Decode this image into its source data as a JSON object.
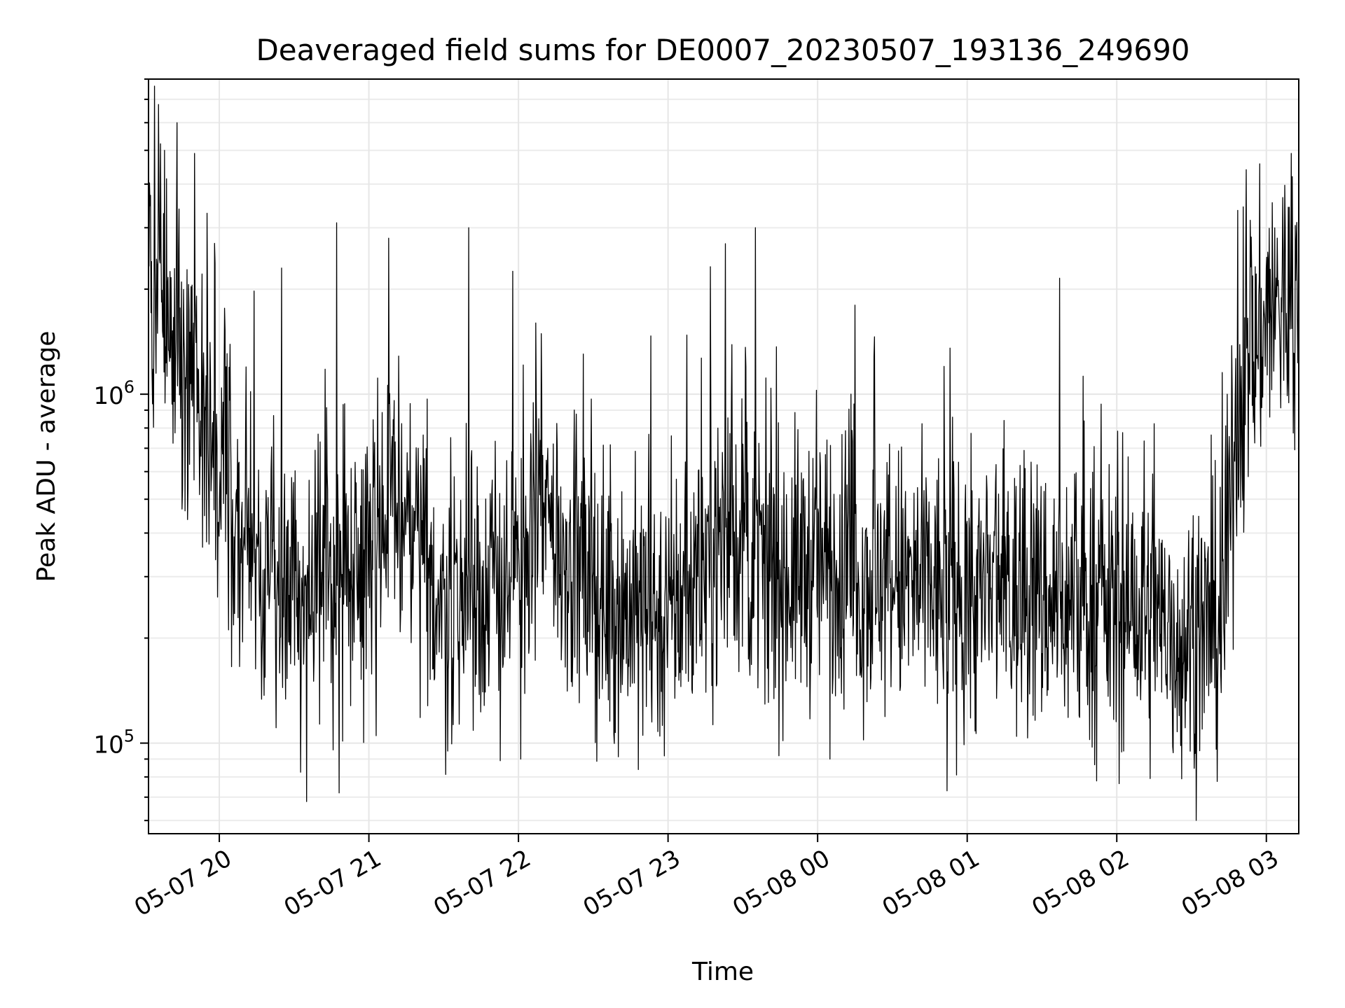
{
  "chart_data": {
    "type": "line",
    "title": "Deaveraged field sums for DE0007_20230507_193136_249690",
    "xlabel": "Time",
    "ylabel": "Peak ADU - average",
    "x_range": [
      "2023-05-07 19:31:36",
      "2023-05-08 03:13:00"
    ],
    "y_range": [
      55000,
      8000000
    ],
    "y_scale": "log",
    "x_ticks": [
      {
        "t": "2023-05-07 20:00",
        "label": "05-07 20"
      },
      {
        "t": "2023-05-07 21:00",
        "label": "05-07 21"
      },
      {
        "t": "2023-05-07 22:00",
        "label": "05-07 22"
      },
      {
        "t": "2023-05-07 23:00",
        "label": "05-07 23"
      },
      {
        "t": "2023-05-08 00:00",
        "label": "05-08 00"
      },
      {
        "t": "2023-05-08 01:00",
        "label": "05-08 01"
      },
      {
        "t": "2023-05-08 02:00",
        "label": "05-08 02"
      },
      {
        "t": "2023-05-08 03:00",
        "label": "05-08 03"
      }
    ],
    "y_ticks": [
      {
        "value": 100000,
        "label_base": "10",
        "label_exp": "5"
      },
      {
        "value": 1000000,
        "label_base": "10",
        "label_exp": "6"
      }
    ],
    "grid": true,
    "line_color": "#000000",
    "series": [
      {
        "name": "",
        "trend": [
          {
            "t": "2023-05-07 19:31",
            "y": 2500000
          },
          {
            "t": "2023-05-07 19:45",
            "y": 1300000
          },
          {
            "t": "2023-05-07 20:00",
            "y": 650000
          },
          {
            "t": "2023-05-07 20:15",
            "y": 320000
          },
          {
            "t": "2023-05-07 20:30",
            "y": 260000
          },
          {
            "t": "2023-05-07 20:45",
            "y": 300000
          },
          {
            "t": "2023-05-07 21:00",
            "y": 400000
          },
          {
            "t": "2023-05-07 21:10",
            "y": 480000
          },
          {
            "t": "2023-05-07 21:30",
            "y": 250000
          },
          {
            "t": "2023-05-07 22:00",
            "y": 300000
          },
          {
            "t": "2023-05-07 22:10",
            "y": 450000
          },
          {
            "t": "2023-05-07 22:30",
            "y": 260000
          },
          {
            "t": "2023-05-07 23:00",
            "y": 230000
          },
          {
            "t": "2023-05-07 23:25",
            "y": 420000
          },
          {
            "t": "2023-05-07 23:40",
            "y": 290000
          },
          {
            "t": "2023-05-08 00:00",
            "y": 330000
          },
          {
            "t": "2023-05-08 00:15",
            "y": 300000
          },
          {
            "t": "2023-05-08 00:30",
            "y": 290000
          },
          {
            "t": "2023-05-08 01:00",
            "y": 260000
          },
          {
            "t": "2023-05-08 01:30",
            "y": 260000
          },
          {
            "t": "2023-05-08 02:00",
            "y": 240000
          },
          {
            "t": "2023-05-08 02:30",
            "y": 200000
          },
          {
            "t": "2023-05-08 02:43",
            "y": 220000
          },
          {
            "t": "2023-05-08 02:48",
            "y": 900000
          },
          {
            "t": "2023-05-08 03:00",
            "y": 1700000
          },
          {
            "t": "2023-05-08 03:13",
            "y": 1900000
          }
        ],
        "peaks": [
          {
            "t": "2023-05-07 19:38",
            "y": 5000000
          },
          {
            "t": "2023-05-07 19:43",
            "y": 6000000
          },
          {
            "t": "2023-05-07 19:50",
            "y": 4900000
          },
          {
            "t": "2023-05-07 19:55",
            "y": 3300000
          },
          {
            "t": "2023-05-07 20:25",
            "y": 2300000
          },
          {
            "t": "2023-05-07 20:47",
            "y": 3100000
          },
          {
            "t": "2023-05-07 21:08",
            "y": 2800000
          },
          {
            "t": "2023-05-07 21:40",
            "y": 3000000
          },
          {
            "t": "2023-05-07 22:07",
            "y": 1600000
          },
          {
            "t": "2023-05-07 23:23",
            "y": 2700000
          },
          {
            "t": "2023-05-07 23:35",
            "y": 3000000
          },
          {
            "t": "2023-05-08 00:15",
            "y": 1800000
          },
          {
            "t": "2023-05-08 01:37",
            "y": 2150000
          },
          {
            "t": "2023-05-08 02:52",
            "y": 4400000
          },
          {
            "t": "2023-05-08 03:10",
            "y": 4900000
          }
        ],
        "dips": [
          {
            "t": "2023-05-07 20:35",
            "y": 68000
          },
          {
            "t": "2023-05-07 20:48",
            "y": 72000
          },
          {
            "t": "2023-05-07 21:03",
            "y": 105000
          },
          {
            "t": "2023-05-07 22:01",
            "y": 90000
          },
          {
            "t": "2023-05-07 22:48",
            "y": 84000
          },
          {
            "t": "2023-05-08 00:05",
            "y": 90000
          },
          {
            "t": "2023-05-08 00:52",
            "y": 73000
          },
          {
            "t": "2023-05-08 02:26",
            "y": 79000
          }
        ]
      }
    ]
  }
}
